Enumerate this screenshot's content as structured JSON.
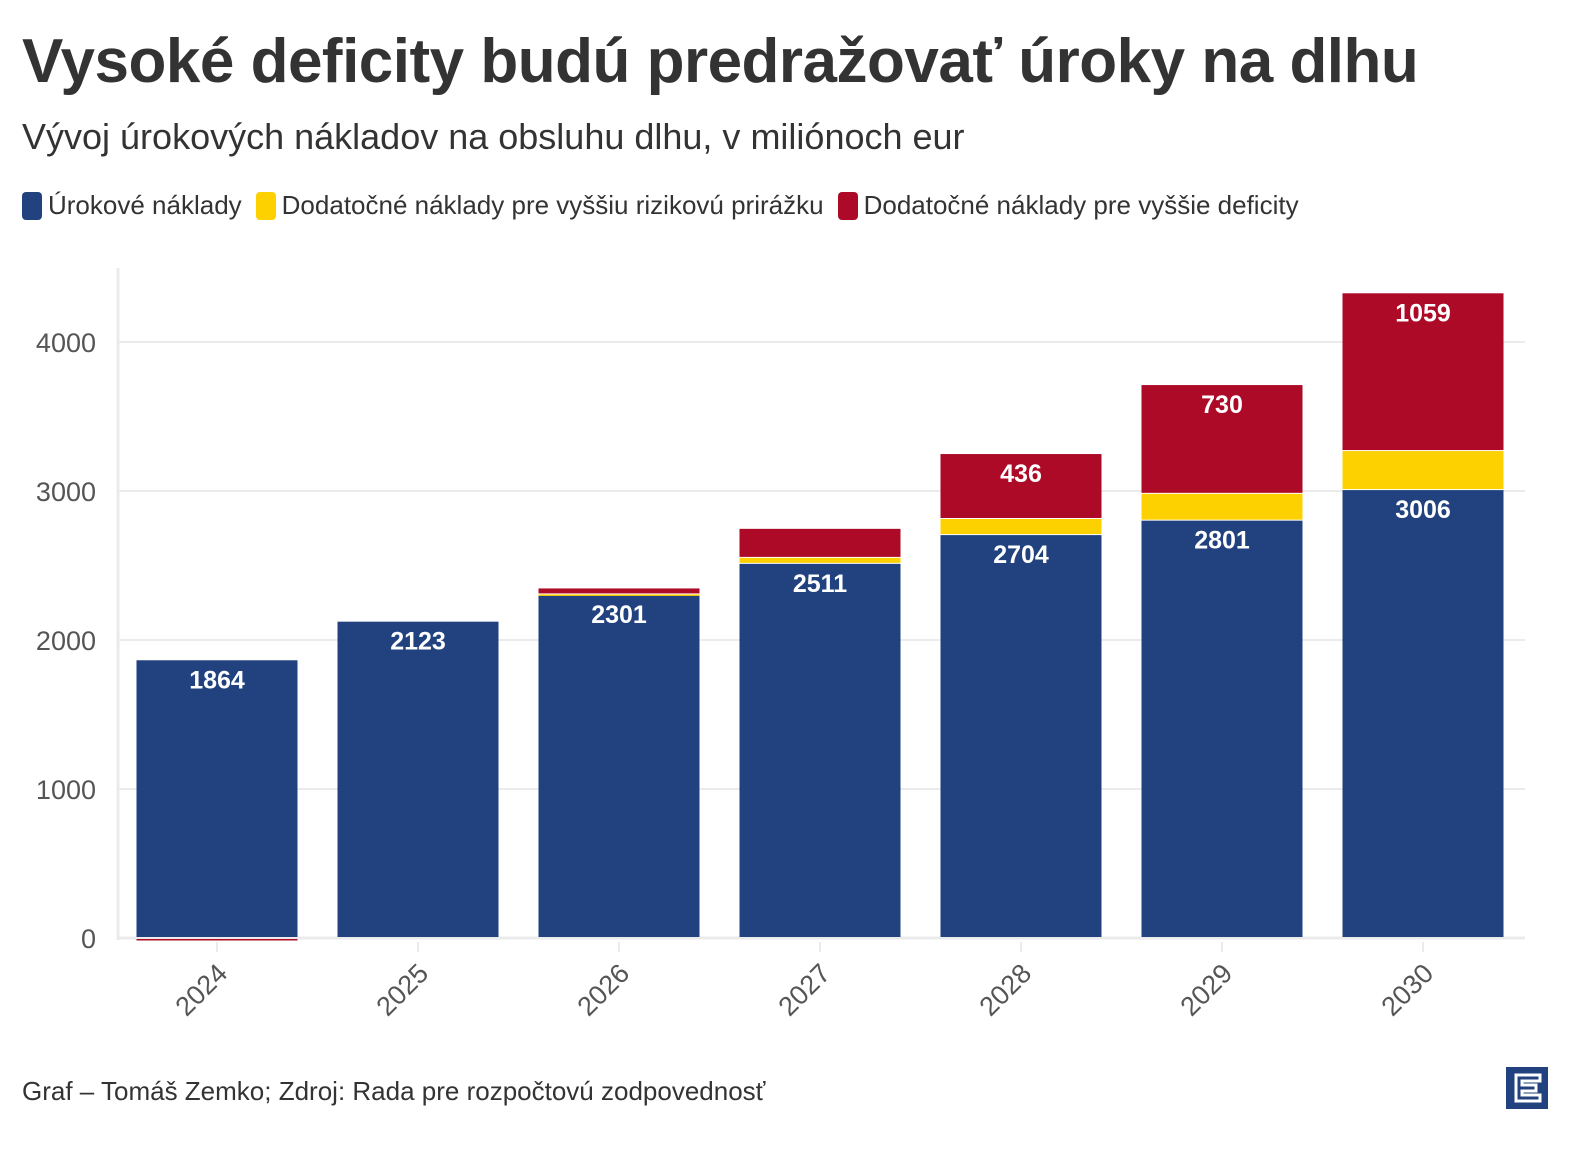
{
  "title": "Vysoké deficity budú predražovať úroky na dlhu",
  "subtitle": "Vývoj úrokových nákladov na obsluhu dlhu, v miliónoch eur",
  "footer": "Graf – Tomáš Zemko; Zdroj: Rada pre rozpočtovú zodpovednosť",
  "logo_icon": "e-logo-icon",
  "chart_data": {
    "type": "bar",
    "stacked": true,
    "categories": [
      "2024",
      "2025",
      "2026",
      "2027",
      "2028",
      "2029",
      "2030"
    ],
    "series": [
      {
        "name": "Úrokové náklady",
        "color": "#21427f",
        "values": [
          1864,
          2123,
          2301,
          2511,
          2704,
          2801,
          3006
        ]
      },
      {
        "name": "Dodatočné náklady pre vyššiu rizikovú prirážku",
        "color": "#fdd000",
        "values": [
          0,
          0,
          5,
          40,
          108,
          180,
          262
        ]
      },
      {
        "name": "Dodatočné náklady pre vyššie deficity",
        "color": "#ad0a27",
        "values": [
          -15,
          0,
          40,
          195,
          436,
          730,
          1059
        ]
      }
    ],
    "data_labels": [
      [
        "1864",
        "2123",
        "2301",
        "2511",
        "2704",
        "2801",
        "3006"
      ],
      [
        "",
        "",
        "",
        "",
        "",
        "",
        ""
      ],
      [
        "",
        "",
        "",
        "",
        "436",
        "730",
        "1059"
      ]
    ],
    "yticks": [
      "0",
      "1000",
      "2000",
      "3000",
      "4000"
    ],
    "ylim": [
      0,
      4500
    ],
    "grid": true,
    "legend": "top-left",
    "xlabel": "",
    "ylabel": ""
  }
}
